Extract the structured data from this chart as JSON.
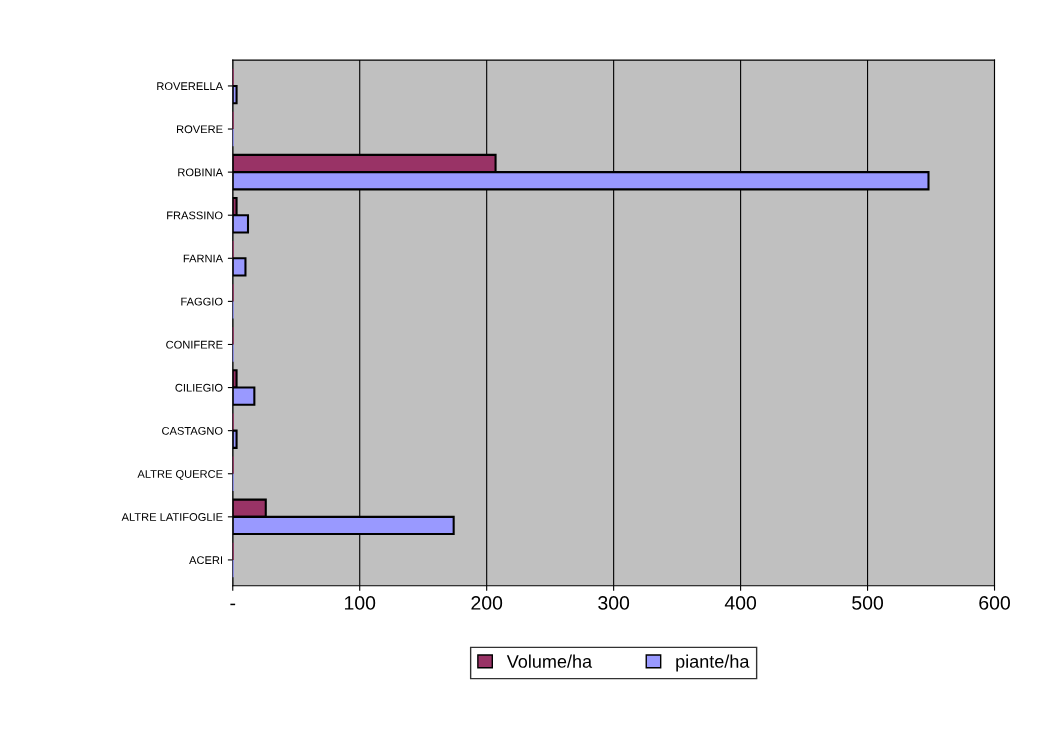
{
  "chart_data": {
    "type": "bar",
    "orientation": "horizontal",
    "categories": [
      "ROVERELLA",
      "ROVERE",
      "ROBINIA",
      "FRASSINO",
      "FARNIA",
      "FAGGIO",
      "CONIFERE",
      "CILIEGIO",
      "CASTAGNO",
      "ALTRE QUERCE",
      "ALTRE LATIFOGLIE",
      "ACERI"
    ],
    "series": [
      {
        "name": "Volume/ha",
        "color": "#993366",
        "values": [
          0,
          0,
          207,
          3,
          0,
          0,
          0,
          3,
          0,
          0,
          26,
          0
        ]
      },
      {
        "name": "piante/ha",
        "color": "#9999ff",
        "values": [
          3,
          0,
          548,
          12,
          10,
          0,
          0,
          17,
          3,
          0,
          174,
          0
        ]
      }
    ],
    "xlim": [
      0,
      600
    ],
    "xticks": [
      {
        "value": 0,
        "label": "-"
      },
      100,
      200,
      300,
      400,
      500,
      600
    ],
    "grid": "x",
    "legend": "bottom"
  }
}
